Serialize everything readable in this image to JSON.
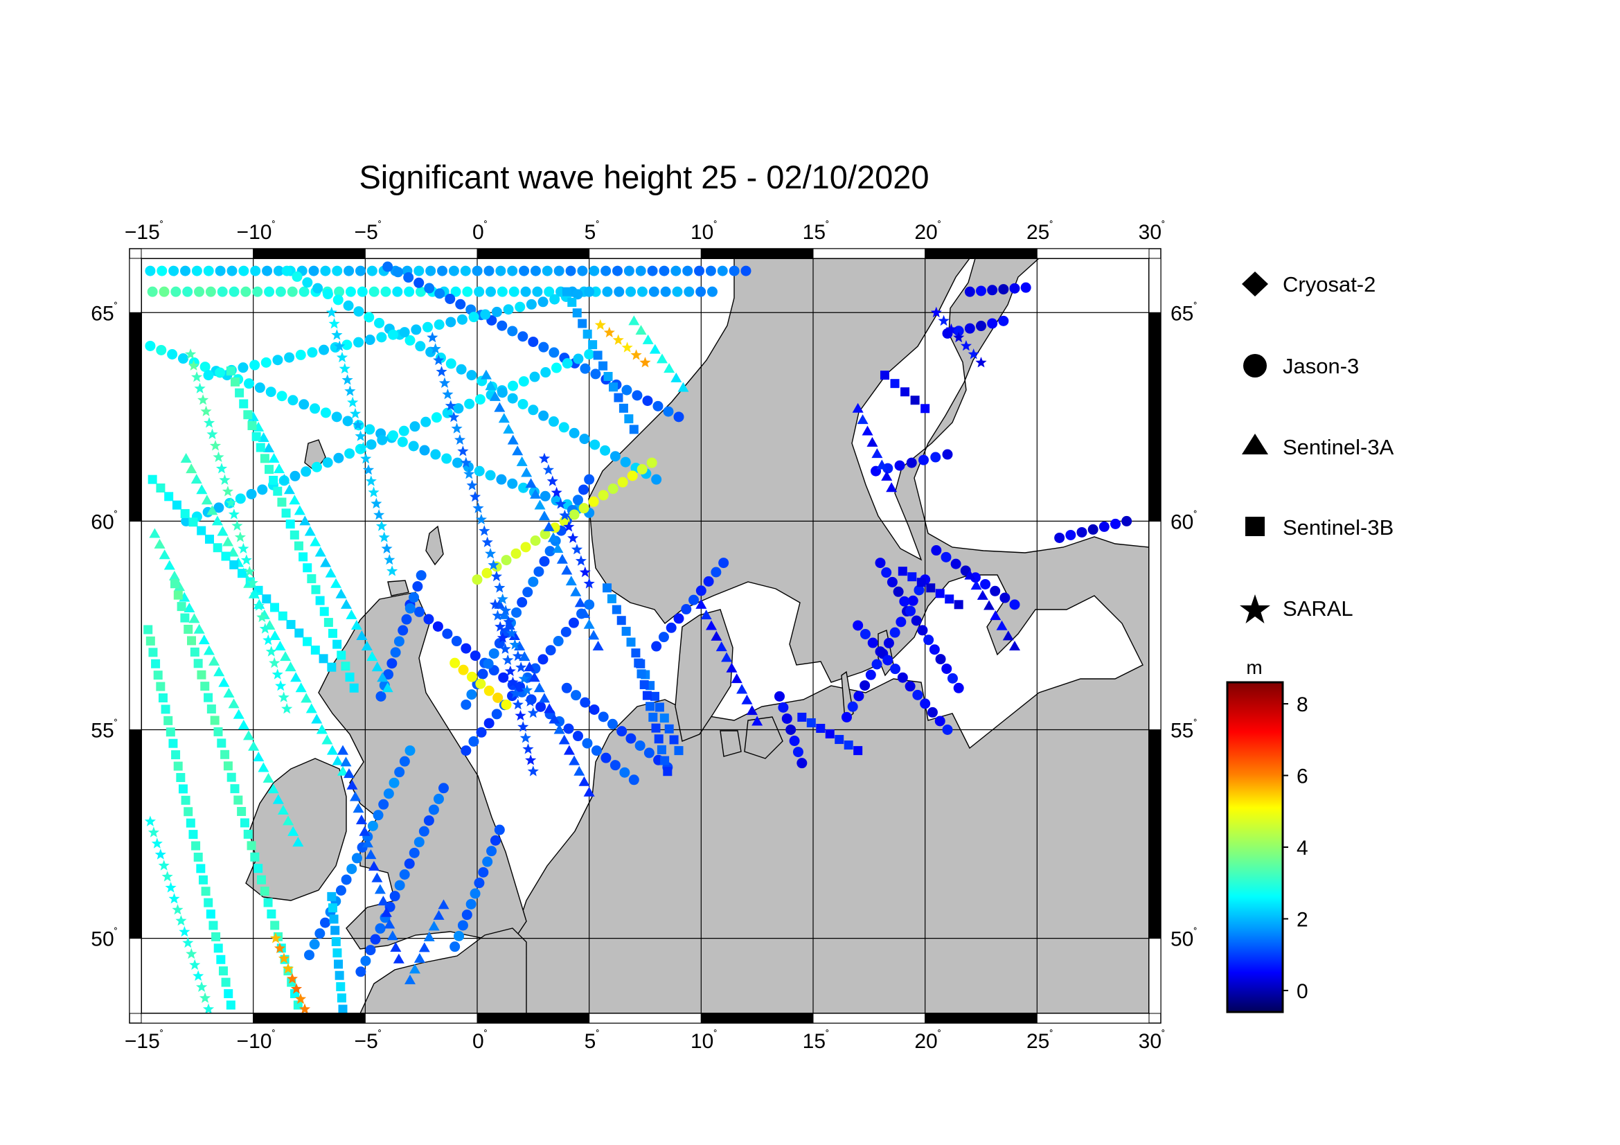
{
  "title": "Significant wave height 25 - 02/10/2020",
  "map": {
    "lon_range": [
      -15,
      30
    ],
    "lat_range": [
      48.2,
      66.3
    ],
    "lon_ticks": [
      "-15",
      "-10",
      "-5",
      "0",
      "5",
      "10",
      "15",
      "20",
      "25",
      "30"
    ],
    "lat_ticks": [
      "50",
      "55",
      "60",
      "65"
    ],
    "grid": true,
    "land_color": "#bebebe",
    "sea_color": "#ffffff"
  },
  "legend": {
    "items": [
      {
        "label": "Cryosat-2",
        "icon": "diamond"
      },
      {
        "label": "Jason-3",
        "icon": "circle"
      },
      {
        "label": "Sentinel-3A",
        "icon": "triangle"
      },
      {
        "label": "Sentinel-3B",
        "icon": "square"
      },
      {
        "label": "SARAL",
        "icon": "star"
      }
    ]
  },
  "colorbar": {
    "unit": "m",
    "min": -0.6,
    "max": 8.6,
    "ticks": [
      "0",
      "2",
      "4",
      "6",
      "8"
    ],
    "colors": [
      "#00005a",
      "#0000ff",
      "#0096ff",
      "#00ffff",
      "#7fff7f",
      "#ffff00",
      "#ff8000",
      "#ff0000",
      "#800000"
    ]
  },
  "chart_data": {
    "type": "scatter",
    "title": "Significant wave height 25 - 02/10/2020",
    "xlabel": "",
    "ylabel": "",
    "xlim": [
      -15,
      30
    ],
    "ylim": [
      48.2,
      66.3
    ],
    "value_unit": "m",
    "series": [
      {
        "name": "Jason-3",
        "marker": "circle",
        "tracks": [
          {
            "from": [
              -14.6,
              64.2
            ],
            "to": [
              5.0,
              60.2
            ],
            "hs": [
              2.6,
              1.9
            ]
          },
          {
            "from": [
              -14.6,
              66.0
            ],
            "to": [
              12.0,
              66.0
            ],
            "hs": [
              2.4,
              1.4
            ]
          },
          {
            "from": [
              -14.5,
              65.5
            ],
            "to": [
              10.5,
              65.5
            ],
            "hs": [
              3.4,
              1.7
            ]
          },
          {
            "from": [
              -4.0,
              66.1
            ],
            "to": [
              9.0,
              62.5
            ],
            "hs": [
              1.4,
              1.2
            ]
          },
          {
            "from": [
              -13.0,
              60.0
            ],
            "to": [
              5.0,
              64.0
            ],
            "hs": [
              2.2,
              2.4
            ]
          },
          {
            "from": [
              -8.5,
              66.0
            ],
            "to": [
              8.0,
              61.0
            ],
            "hs": [
              2.5,
              2.0
            ]
          },
          {
            "from": [
              -12.0,
              63.5
            ],
            "to": [
              5.0,
              65.5
            ],
            "hs": [
              2.5,
              2.1
            ]
          },
          {
            "from": [
              -3.0,
              58.0
            ],
            "to": [
              7.0,
              53.8
            ],
            "hs": [
              0.9,
              1.2
            ]
          },
          {
            "from": [
              -0.5,
              55.6
            ],
            "to": [
              5.0,
              61.0
            ],
            "hs": [
              1.3,
              1.3
            ]
          },
          {
            "from": [
              -0.5,
              54.5
            ],
            "to": [
              5.0,
              58.0
            ],
            "hs": [
              1.0,
              1.2
            ]
          },
          {
            "from": [
              -4.3,
              55.8
            ],
            "to": [
              -2.5,
              58.7
            ],
            "hs": [
              1.2,
              1.3
            ]
          },
          {
            "from": [
              -7.5,
              49.6
            ],
            "to": [
              -3.0,
              54.5
            ],
            "hs": [
              1.4,
              1.5
            ]
          },
          {
            "from": [
              -5.2,
              49.2
            ],
            "to": [
              -1.5,
              53.6
            ],
            "hs": [
              1.2,
              1.3
            ]
          },
          {
            "from": [
              -1.0,
              49.8
            ],
            "to": [
              1.0,
              52.6
            ],
            "hs": [
              1.4,
              1.2
            ]
          },
          {
            "from": [
              0.0,
              58.6
            ],
            "to": [
              7.8,
              61.4
            ],
            "hs": [
              4.6,
              4.8
            ]
          },
          {
            "from": [
              -1.0,
              56.6
            ],
            "to": [
              1.3,
              55.6
            ],
            "hs": [
              5.0,
              5.2
            ]
          },
          {
            "from": [
              4.0,
              56.0
            ],
            "to": [
              8.5,
              54.1
            ],
            "hs": [
              1.1,
              1.1
            ]
          },
          {
            "from": [
              8.0,
              57.0
            ],
            "to": [
              11.0,
              59.0
            ],
            "hs": [
              0.9,
              0.9
            ]
          },
          {
            "from": [
              13.5,
              55.8
            ],
            "to": [
              14.5,
              54.2
            ],
            "hs": [
              0.4,
              0.5
            ]
          },
          {
            "from": [
              16.5,
              55.3
            ],
            "to": [
              20.0,
              58.6
            ],
            "hs": [
              0.5,
              0.5
            ]
          },
          {
            "from": [
              17.0,
              57.5
            ],
            "to": [
              21.0,
              55.0
            ],
            "hs": [
              0.5,
              0.5
            ]
          },
          {
            "from": [
              18.0,
              59.0
            ],
            "to": [
              21.5,
              56.0
            ],
            "hs": [
              0.4,
              0.5
            ]
          },
          {
            "from": [
              20.5,
              59.3
            ],
            "to": [
              24.0,
              58.0
            ],
            "hs": [
              0.4,
              0.4
            ]
          },
          {
            "from": [
              26.0,
              59.6
            ],
            "to": [
              29.0,
              60.0
            ],
            "hs": [
              0.3,
              0.3
            ]
          },
          {
            "from": [
              17.8,
              61.2
            ],
            "to": [
              21.0,
              61.6
            ],
            "hs": [
              0.5,
              0.5
            ]
          },
          {
            "from": [
              22.0,
              65.5
            ],
            "to": [
              24.5,
              65.6
            ],
            "hs": [
              0.3,
              0.3
            ]
          },
          {
            "from": [
              21.0,
              64.5
            ],
            "to": [
              23.5,
              64.8
            ],
            "hs": [
              0.4,
              0.4
            ]
          }
        ]
      },
      {
        "name": "Sentinel-3A",
        "marker": "triangle",
        "tracks": [
          {
            "from": [
              -14.4,
              59.7
            ],
            "to": [
              -8.0,
              52.3
            ],
            "hs": [
              3.0,
              2.7
            ]
          },
          {
            "from": [
              -10.0,
              62.5
            ],
            "to": [
              -4.0,
              56.0
            ],
            "hs": [
              2.5,
              2.3
            ]
          },
          {
            "from": [
              -13.0,
              61.5
            ],
            "to": [
              -6.0,
              54.0
            ],
            "hs": [
              3.1,
              2.6
            ]
          },
          {
            "from": [
              0.4,
              63.5
            ],
            "to": [
              5.4,
              57.0
            ],
            "hs": [
              1.8,
              1.3
            ]
          },
          {
            "from": [
              1.0,
              58.0
            ],
            "to": [
              5.0,
              53.5
            ],
            "hs": [
              1.2,
              1.0
            ]
          },
          {
            "from": [
              -6.0,
              54.5
            ],
            "to": [
              -3.5,
              49.5
            ],
            "hs": [
              1.2,
              1.1
            ]
          },
          {
            "from": [
              10.0,
              58.0
            ],
            "to": [
              12.5,
              55.2
            ],
            "hs": [
              0.6,
              0.6
            ]
          },
          {
            "from": [
              17.0,
              62.7
            ],
            "to": [
              18.5,
              60.8
            ],
            "hs": [
              0.6,
              0.6
            ]
          },
          {
            "from": [
              22.0,
              58.7
            ],
            "to": [
              24.0,
              57.0
            ],
            "hs": [
              0.4,
              0.4
            ]
          },
          {
            "from": [
              -3.0,
              49.0
            ],
            "to": [
              -1.5,
              50.8
            ],
            "hs": [
              1.4,
              1.3
            ]
          },
          {
            "from": [
              7.0,
              64.8
            ],
            "to": [
              9.2,
              63.2
            ],
            "hs": [
              3.0,
              2.5
            ]
          }
        ]
      },
      {
        "name": "Sentinel-3B",
        "marker": "square",
        "tracks": [
          {
            "from": [
              -14.7,
              57.4
            ],
            "to": [
              -11.0,
              48.4
            ],
            "hs": [
              3.1,
              2.8
            ]
          },
          {
            "from": [
              -11.0,
              63.6
            ],
            "to": [
              -5.5,
              56.0
            ],
            "hs": [
              3.1,
              2.6
            ]
          },
          {
            "from": [
              -13.5,
              58.5
            ],
            "to": [
              -8.0,
              48.4
            ],
            "hs": [
              3.3,
              2.9
            ]
          },
          {
            "from": [
              -6.5,
              51.0
            ],
            "to": [
              -6.0,
              48.3
            ],
            "hs": [
              2.0,
              2.2
            ]
          },
          {
            "from": [
              5.8,
              58.4
            ],
            "to": [
              9.0,
              54.5
            ],
            "hs": [
              1.5,
              1.2
            ]
          },
          {
            "from": [
              7.2,
              56.6
            ],
            "to": [
              8.5,
              54.0
            ],
            "hs": [
              1.2,
              1.1
            ]
          },
          {
            "from": [
              14.5,
              55.3
            ],
            "to": [
              17.0,
              54.5
            ],
            "hs": [
              0.7,
              0.7
            ]
          },
          {
            "from": [
              18.2,
              63.5
            ],
            "to": [
              20.0,
              62.7
            ],
            "hs": [
              0.4,
              0.4
            ]
          },
          {
            "from": [
              19.0,
              58.8
            ],
            "to": [
              21.5,
              58.0
            ],
            "hs": [
              0.4,
              0.4
            ]
          },
          {
            "from": [
              4.0,
              65.5
            ],
            "to": [
              7.0,
              62.2
            ],
            "hs": [
              1.9,
              1.5
            ]
          },
          {
            "from": [
              -14.5,
              61.0
            ],
            "to": [
              -6.5,
              56.5
            ],
            "hs": [
              2.7,
              2.4
            ]
          }
        ]
      },
      {
        "name": "SARAL",
        "marker": "star",
        "tracks": [
          {
            "from": [
              -14.6,
              52.8
            ],
            "to": [
              -12.0,
              48.3
            ],
            "hs": [
              2.7,
              3.0
            ]
          },
          {
            "from": [
              -12.8,
              64.0
            ],
            "to": [
              -8.5,
              55.5
            ],
            "hs": [
              3.3,
              2.8
            ]
          },
          {
            "from": [
              -6.5,
              65.0
            ],
            "to": [
              -3.8,
              58.8
            ],
            "hs": [
              2.3,
              2.0
            ]
          },
          {
            "from": [
              -2.0,
              64.4
            ],
            "to": [
              2.5,
              55.4
            ],
            "hs": [
              1.5,
              1.3
            ]
          },
          {
            "from": [
              0.8,
              58.0
            ],
            "to": [
              2.5,
              54.0
            ],
            "hs": [
              1.1,
              1.0
            ]
          },
          {
            "from": [
              -9.0,
              50.0
            ],
            "to": [
              -7.7,
              48.3
            ],
            "hs": [
              5.6,
              6.2
            ]
          },
          {
            "from": [
              5.5,
              64.7
            ],
            "to": [
              7.5,
              63.8
            ],
            "hs": [
              5.4,
              5.6
            ]
          },
          {
            "from": [
              20.5,
              65.0
            ],
            "to": [
              22.5,
              63.8
            ],
            "hs": [
              0.5,
              0.5
            ]
          },
          {
            "from": [
              3.0,
              61.5
            ],
            "to": [
              5.0,
              58.5
            ],
            "hs": [
              1.0,
              0.9
            ]
          }
        ]
      }
    ]
  }
}
